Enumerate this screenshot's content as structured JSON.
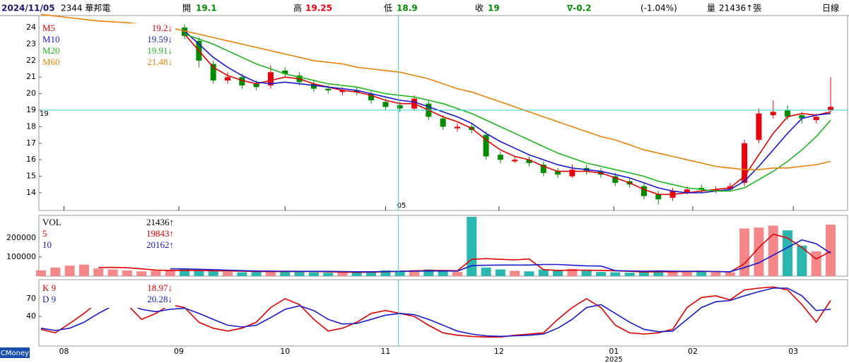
{
  "header": {
    "date": "2024/11/05",
    "stock": "2344 華邦電",
    "open_label": "開",
    "open": 19.1,
    "high_label": "高",
    "high": 19.25,
    "low_label": "低",
    "low": 18.9,
    "close_label": "收",
    "close": 19,
    "change": "∇-0.2",
    "change_pct": "(-1.04%)",
    "volume_label": "量",
    "volume": "21436↑張",
    "period": "日線",
    "brand": "CMoney"
  },
  "chart_data": [
    {
      "type": "candlestick",
      "xlim": [
        0,
        55
      ],
      "ylim": [
        12.93,
        24.73
      ],
      "yticks": [
        14,
        15,
        16,
        17,
        18,
        19,
        20,
        21,
        22,
        23,
        24
      ],
      "up_color": "#e8000b",
      "down_color": "#008a00",
      "crosshair": {
        "x": {
          "value": 24.9,
          "label": "05"
        },
        "y": 19,
        "color": "#30d0d0"
      },
      "open": [
        null,
        null,
        null,
        null,
        null,
        null,
        null,
        null,
        null,
        null,
        24.0,
        23.2,
        21.8,
        20.8,
        21.0,
        20.6,
        20.5,
        21.4,
        21.1,
        20.6,
        20.3,
        20.1,
        20.2,
        20.0,
        19.5,
        19.3,
        19.1,
        19.4,
        18.5,
        17.9,
        18.0,
        17.5,
        16.3,
        15.9,
        16.0,
        15.7,
        15.3,
        15.0,
        15.5,
        15.3,
        15.0,
        14.7,
        14.4,
        13.9,
        13.7,
        14.0,
        14.3,
        14.1,
        14.2,
        14.6,
        17.2,
        18.7,
        19.0,
        18.7,
        18.4,
        19.0
      ],
      "high": [
        null,
        null,
        null,
        null,
        null,
        null,
        null,
        null,
        null,
        null,
        24.2,
        23.4,
        22.0,
        21.3,
        21.2,
        20.8,
        21.7,
        21.6,
        21.3,
        20.8,
        20.5,
        20.4,
        20.4,
        20.2,
        19.7,
        19.5,
        19.9,
        19.6,
        18.7,
        18.2,
        18.2,
        17.7,
        16.5,
        16.2,
        16.2,
        15.9,
        15.5,
        15.7,
        15.7,
        15.5,
        15.2,
        14.9,
        14.6,
        14.1,
        14.3,
        14.4,
        14.5,
        14.4,
        14.6,
        17.2,
        19.1,
        19.6,
        19.3,
        18.9,
        18.8,
        21.0
      ],
      "low": [
        null,
        null,
        null,
        null,
        null,
        null,
        null,
        null,
        null,
        null,
        23.3,
        21.6,
        20.6,
        20.6,
        20.3,
        20.2,
        20.3,
        21.0,
        20.5,
        20.1,
        20.0,
        19.9,
        19.9,
        19.4,
        19.0,
        18.9,
        19.0,
        18.4,
        17.8,
        17.7,
        17.6,
        16.0,
        15.8,
        15.8,
        15.6,
        15.0,
        14.9,
        14.9,
        15.1,
        14.9,
        14.4,
        14.3,
        13.6,
        13.3,
        13.5,
        13.9,
        14.0,
        14.0,
        14.1,
        14.4,
        17.0,
        18.5,
        18.4,
        18.2,
        18.2,
        18.9
      ],
      "close": [
        null,
        null,
        null,
        null,
        null,
        null,
        null,
        null,
        null,
        null,
        23.5,
        22.0,
        20.8,
        21.0,
        20.5,
        20.4,
        21.3,
        21.2,
        20.7,
        20.3,
        20.2,
        20.2,
        20.1,
        19.6,
        19.2,
        19.1,
        19.7,
        18.6,
        18.0,
        18.0,
        17.8,
        16.2,
        16.0,
        16.0,
        15.8,
        15.2,
        15.1,
        15.4,
        15.3,
        15.1,
        14.6,
        14.5,
        13.8,
        13.6,
        14.1,
        14.2,
        14.2,
        14.2,
        14.4,
        17.0,
        18.8,
        18.9,
        18.6,
        18.5,
        18.6,
        19.2
      ],
      "series": [
        {
          "name": "M5",
          "color": "#e00000",
          "legend_value": "19.2↓",
          "values": [
            null,
            null,
            null,
            null,
            null,
            null,
            null,
            null,
            null,
            null,
            23.6,
            22.6,
            21.6,
            21.1,
            20.8,
            20.6,
            20.8,
            21.0,
            20.9,
            20.6,
            20.4,
            20.2,
            20.1,
            19.9,
            19.6,
            19.4,
            19.4,
            19.0,
            18.6,
            18.3,
            17.9,
            17.2,
            16.6,
            16.2,
            16.0,
            15.6,
            15.3,
            15.3,
            15.3,
            15.2,
            14.9,
            14.6,
            14.2,
            13.9,
            13.9,
            14.0,
            14.1,
            14.2,
            14.3,
            15.0,
            16.3,
            17.6,
            18.6,
            18.8,
            18.7,
            18.9
          ]
        },
        {
          "name": "M10",
          "color": "#1a1acc",
          "legend_value": "19.59↓",
          "values": [
            null,
            null,
            null,
            null,
            null,
            null,
            null,
            null,
            null,
            null,
            23.8,
            23.0,
            22.2,
            21.6,
            21.1,
            20.7,
            20.6,
            20.7,
            20.6,
            20.5,
            20.4,
            20.3,
            20.2,
            20.0,
            19.8,
            19.6,
            19.5,
            19.2,
            18.9,
            18.6,
            18.2,
            17.6,
            17.1,
            16.7,
            16.3,
            16.0,
            15.7,
            15.5,
            15.4,
            15.3,
            15.1,
            14.9,
            14.6,
            14.3,
            14.1,
            14.0,
            14.0,
            14.1,
            14.2,
            14.7,
            15.6,
            16.6,
            17.6,
            18.5,
            18.7,
            18.8
          ]
        },
        {
          "name": "M20",
          "color": "#1fb51f",
          "legend_value": "19.91↓",
          "values": [
            null,
            null,
            null,
            null,
            null,
            null,
            null,
            null,
            null,
            null,
            23.6,
            23.3,
            23.0,
            22.6,
            22.2,
            21.8,
            21.5,
            21.2,
            21.0,
            20.8,
            20.6,
            20.5,
            20.4,
            20.2,
            20.0,
            19.9,
            19.8,
            19.6,
            19.4,
            19.1,
            18.8,
            18.4,
            18.0,
            17.6,
            17.2,
            16.8,
            16.4,
            16.1,
            15.8,
            15.6,
            15.4,
            15.2,
            15.0,
            14.7,
            14.5,
            14.3,
            14.2,
            14.1,
            14.1,
            14.3,
            14.8,
            15.3,
            15.9,
            16.6,
            17.4,
            18.4
          ]
        },
        {
          "name": "M60",
          "color": "#e8820c",
          "legend_value": "21.48↓",
          "values": [
            24.8,
            24.7,
            24.6,
            24.5,
            24.4,
            24.35,
            24.3,
            24.2,
            24.1,
            24.0,
            23.8,
            23.6,
            23.4,
            23.2,
            23.0,
            22.8,
            22.6,
            22.4,
            22.2,
            22.0,
            21.9,
            21.8,
            21.6,
            21.5,
            21.4,
            21.3,
            21.1,
            20.9,
            20.6,
            20.3,
            20.1,
            19.8,
            19.5,
            19.2,
            18.9,
            18.6,
            18.3,
            18.0,
            17.7,
            17.4,
            17.2,
            16.9,
            16.6,
            16.4,
            16.2,
            16.0,
            15.8,
            15.6,
            15.5,
            15.4,
            15.4,
            15.5,
            15.5,
            15.6,
            15.7,
            15.9
          ]
        }
      ]
    },
    {
      "type": "bar",
      "xlim": [
        0,
        55
      ],
      "ylim": [
        0,
        318500
      ],
      "yticks": [
        100000,
        200000
      ],
      "up_color": "#f4878a",
      "down_color": "#2bb6b0",
      "series": [
        {
          "name": "VOL",
          "legend_value": "21436↑",
          "color": "#000000",
          "values": [
            30000,
            45000,
            55000,
            60000,
            40000,
            35000,
            30000,
            25000,
            28000,
            30000,
            35000,
            30000,
            25000,
            22000,
            20000,
            22000,
            30000,
            25000,
            22000,
            20000,
            18000,
            20000,
            22000,
            25000,
            30000,
            28000,
            32000,
            35000,
            25000,
            22000,
            311000,
            45000,
            35000,
            28000,
            25000,
            35000,
            30000,
            38000,
            28000,
            22000,
            20000,
            18000,
            25000,
            28000,
            22000,
            25000,
            22000,
            20000,
            20000,
            250000,
            255000,
            265000,
            240000,
            160000,
            130000,
            270000
          ]
        },
        {
          "name": "5",
          "legend_value": "19843↑",
          "color": "#e00000",
          "values": [
            null,
            null,
            null,
            null,
            45000,
            46000,
            44000,
            38000,
            32000,
            30000,
            30000,
            30000,
            28000,
            27000,
            26000,
            24000,
            24000,
            24000,
            24000,
            24000,
            23000,
            21000,
            20000,
            21000,
            23000,
            25000,
            27000,
            30000,
            30000,
            28000,
            88000,
            92000,
            88000,
            85000,
            90000,
            34000,
            30000,
            31000,
            31000,
            30000,
            28000,
            25000,
            22000,
            23000,
            23000,
            24000,
            24000,
            24000,
            22000,
            65000,
            150000,
            220000,
            200000,
            150000,
            90000,
            130000
          ]
        },
        {
          "name": "10",
          "legend_value": "20162↑",
          "color": "#1a1acc",
          "values": [
            null,
            null,
            null,
            null,
            null,
            null,
            null,
            null,
            null,
            38000,
            38000,
            36000,
            34000,
            31000,
            29000,
            27000,
            26000,
            26000,
            25000,
            25000,
            25000,
            24000,
            23000,
            23000,
            24000,
            25000,
            26000,
            27000,
            27000,
            26000,
            55000,
            57000,
            58000,
            58000,
            58000,
            61000,
            61000,
            57000,
            54000,
            53000,
            29000,
            27000,
            26000,
            27000,
            26000,
            25000,
            26000,
            24000,
            23000,
            45000,
            70000,
            110000,
            150000,
            190000,
            170000,
            120000
          ]
        }
      ]
    },
    {
      "type": "line",
      "xlim": [
        0,
        55
      ],
      "ylim": [
        -10.4,
        102.4
      ],
      "yticks": [
        40,
        70
      ],
      "xticks": [
        {
          "value": 1.6,
          "label": "08"
        },
        {
          "value": 9.6,
          "label": "09"
        },
        {
          "value": 17,
          "label": "10"
        },
        {
          "value": 24,
          "label": "11"
        },
        {
          "value": 31.9,
          "label": "12"
        },
        {
          "value": 39.9,
          "label": "01"
        },
        {
          "value": 45.4,
          "label": "02"
        },
        {
          "value": 52.4,
          "label": "03"
        }
      ],
      "year": {
        "value": 39.9,
        "label": "2025"
      },
      "series": [
        {
          "name": "K 9",
          "legend_value": "18.97↓",
          "color": "#e00000",
          "values": [
            18,
            12,
            28,
            45,
            65,
            72,
            60,
            35,
            45,
            60,
            55,
            30,
            20,
            15,
            20,
            30,
            55,
            70,
            60,
            35,
            15,
            20,
            30,
            45,
            50,
            45,
            40,
            25,
            12,
            8,
            6,
            5,
            5,
            8,
            10,
            12,
            35,
            55,
            70,
            55,
            25,
            12,
            10,
            12,
            18,
            55,
            72,
            75,
            68,
            85,
            88,
            90,
            85,
            60,
            30,
            67
          ]
        },
        {
          "name": "D 9",
          "legend_value": "20.28↓",
          "color": "#1a1acc",
          "values": [
            20,
            16,
            20,
            30,
            45,
            58,
            62,
            52,
            48,
            52,
            54,
            45,
            35,
            25,
            22,
            25,
            38,
            52,
            58,
            50,
            35,
            27,
            28,
            35,
            42,
            45,
            43,
            35,
            25,
            15,
            10,
            7,
            6,
            7,
            8,
            10,
            20,
            35,
            55,
            60,
            45,
            30,
            18,
            14,
            15,
            35,
            55,
            65,
            67,
            75,
            82,
            88,
            88,
            75,
            50,
            52
          ]
        }
      ]
    }
  ]
}
